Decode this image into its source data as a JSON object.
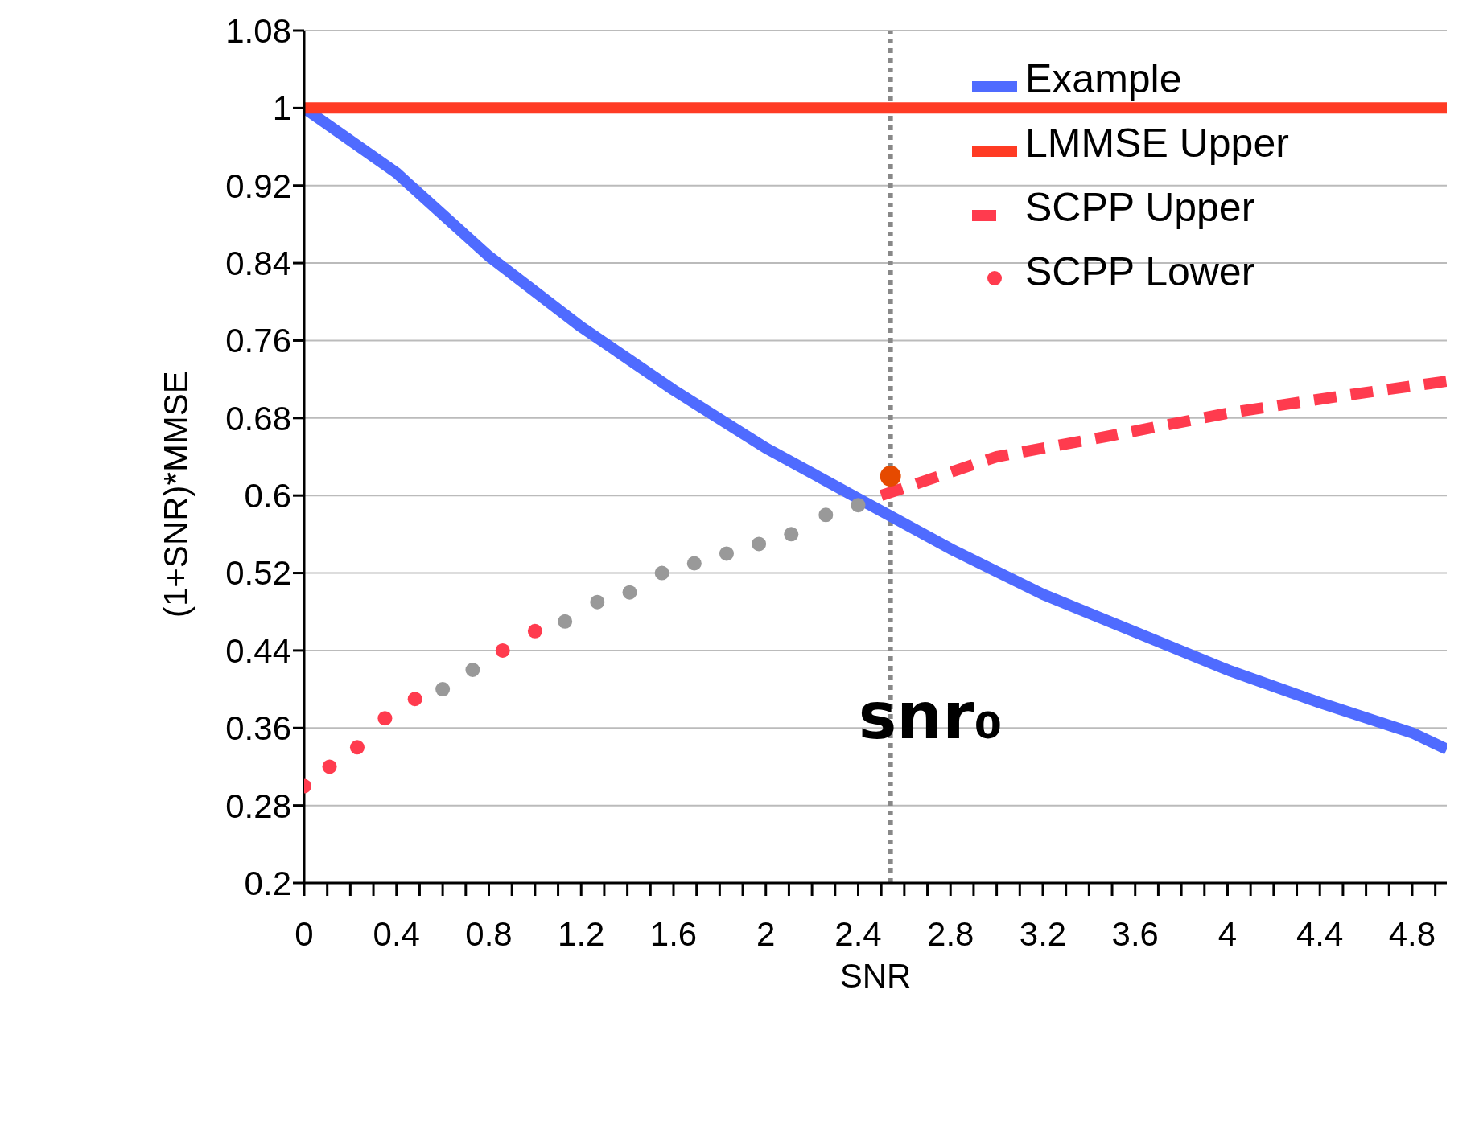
{
  "chart_data": {
    "type": "line",
    "xlabel": "SNR",
    "ylabel": "(1+SNR)*MMSE",
    "xlim": [
      0,
      4.95
    ],
    "ylim": [
      0.2,
      1.08
    ],
    "xticks": [
      0,
      {
        "value": 0.1,
        "label": null
      },
      {
        "value": 0.2,
        "label": null
      },
      {
        "value": 0.3,
        "label": null
      },
      0.4,
      {
        "value": 0.5,
        "label": null
      },
      {
        "value": 0.6,
        "label": null
      },
      {
        "value": 0.7,
        "label": null
      },
      0.8,
      {
        "value": 0.9,
        "label": null
      },
      {
        "value": 1.0,
        "label": null
      },
      {
        "value": 1.1,
        "label": null
      },
      1.2,
      {
        "value": 1.3,
        "label": null
      },
      {
        "value": 1.4,
        "label": null
      },
      {
        "value": 1.5,
        "label": null
      },
      1.6,
      {
        "value": 1.7,
        "label": null
      },
      {
        "value": 1.8,
        "label": null
      },
      {
        "value": 1.9,
        "label": null
      },
      2,
      {
        "value": 2.1,
        "label": null
      },
      {
        "value": 2.2,
        "label": null
      },
      {
        "value": 2.3,
        "label": null
      },
      2.4,
      {
        "value": 2.5,
        "label": null
      },
      {
        "value": 2.6,
        "label": null
      },
      {
        "value": 2.7,
        "label": null
      },
      2.8,
      {
        "value": 2.9,
        "label": null
      },
      {
        "value": 3.0,
        "label": null
      },
      {
        "value": 3.1,
        "label": null
      },
      3.2,
      {
        "value": 3.3,
        "label": null
      },
      {
        "value": 3.4,
        "label": null
      },
      {
        "value": 3.5,
        "label": null
      },
      3.6,
      {
        "value": 3.7,
        "label": null
      },
      {
        "value": 3.8,
        "label": null
      },
      {
        "value": 3.9,
        "label": null
      },
      4,
      {
        "value": 4.1,
        "label": null
      },
      {
        "value": 4.2,
        "label": null
      },
      {
        "value": 4.3,
        "label": null
      },
      4.4,
      {
        "value": 4.5,
        "label": null
      },
      {
        "value": 4.6,
        "label": null
      },
      {
        "value": 4.7,
        "label": null
      },
      4.8,
      {
        "value": 4.9,
        "label": null
      }
    ],
    "yticks": [
      0.2,
      0.28,
      0.36,
      0.44,
      0.52,
      0.6,
      0.68,
      0.76,
      0.84,
      0.92,
      1,
      1.08
    ],
    "grid": "y",
    "legend": "top right",
    "marker": "none",
    "series": [
      {
        "name": "Example",
        "color": "#4f6bff",
        "x": [
          0,
          0.4,
          0.8,
          1.2,
          1.6,
          2,
          2.4,
          2.8,
          3.2,
          3.6,
          4,
          4.4,
          4.8,
          4.95
        ],
        "values": [
          1,
          0.933,
          0.847,
          0.774,
          0.709,
          0.649,
          0.597,
          0.545,
          0.498,
          0.459,
          0.42,
          0.386,
          0.355,
          0.338
        ]
      },
      {
        "name": "LMMSE Upper",
        "color": "#ff3b24",
        "x": [
          0,
          4.95
        ],
        "values": [
          1,
          1
        ]
      },
      {
        "name": "SCPP Upper",
        "color": "#ff3b4e",
        "line_style": "dashed",
        "x": [
          2.5,
          3,
          3.5,
          4,
          4.5,
          4.95
        ],
        "values": [
          0.6,
          0.64,
          0.662,
          0.685,
          0.703,
          0.718
        ]
      },
      {
        "name": "SCPP Lower",
        "type": "scatter",
        "marker": "circle",
        "color": "#ff3b4e",
        "colors": [
          "#ff3b4e",
          "#ff3b4e",
          "#ff3b4e",
          "#ff3b4e",
          "#ff3b4e",
          "#999999",
          "#999999",
          "#ff3b4e",
          "#ff3b4e",
          "#999999",
          "#999999",
          "#999999",
          "#999999",
          "#999999",
          "#999999",
          "#999999",
          "#999999",
          "#999999",
          "#999999"
        ],
        "x": [
          0,
          0.11,
          0.23,
          0.35,
          0.48,
          0.6,
          0.73,
          0.86,
          1,
          1.13,
          1.27,
          1.41,
          1.55,
          1.69,
          1.83,
          1.97,
          2.11,
          2.26,
          2.4
        ],
        "values": [
          0.3,
          0.32,
          0.34,
          0.37,
          0.39,
          0.4,
          0.42,
          0.44,
          0.46,
          0.47,
          0.49,
          0.5,
          0.52,
          0.53,
          0.54,
          0.55,
          0.56,
          0.58,
          0.59
        ]
      },
      {
        "type": "scatter",
        "marker": "circle",
        "color": "#e64a00",
        "x": [
          2.54
        ],
        "values": [
          0.62
        ]
      }
    ],
    "ref_lines": [
      {
        "axis": "x",
        "value": 2.54,
        "label": "snr₀",
        "color": "#888888",
        "line_style": "dotted"
      }
    ]
  }
}
